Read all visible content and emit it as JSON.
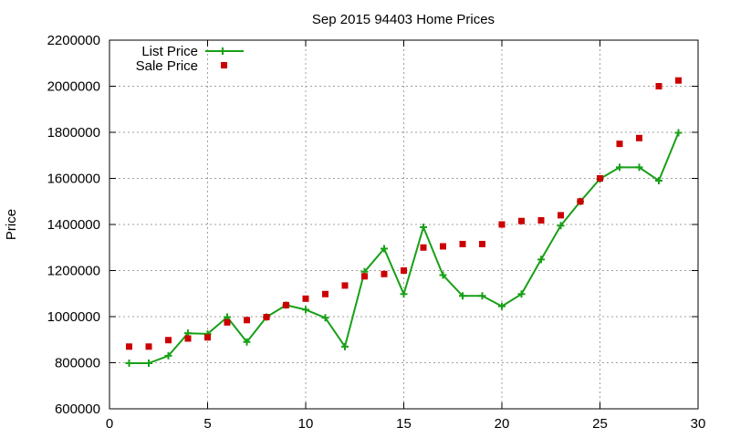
{
  "chart_data": {
    "type": "line",
    "title": "Sep 2015 94403 Home Prices",
    "xlabel": "",
    "ylabel": "Price",
    "xlim": [
      0,
      30
    ],
    "ylim": [
      600000,
      2200000
    ],
    "x_ticks": [
      "0",
      "5",
      "10",
      "15",
      "20",
      "25",
      "30"
    ],
    "y_ticks": [
      "600000",
      "800000",
      "1000000",
      "1200000",
      "1400000",
      "1600000",
      "1800000",
      "2000000",
      "2200000"
    ],
    "grid": true,
    "legend_position": "top-left",
    "series": [
      {
        "name": "List Price",
        "style": "line-with-plus-markers",
        "color": "#18a018",
        "x": [
          1,
          2,
          3,
          4,
          5,
          6,
          7,
          8,
          9,
          10,
          11,
          12,
          13,
          14,
          15,
          16,
          17,
          18,
          19,
          20,
          21,
          22,
          23,
          24,
          25,
          26,
          27,
          28,
          29
        ],
        "values": [
          798000,
          798000,
          830000,
          928000,
          925000,
          998000,
          890000,
          998000,
          1050000,
          1030000,
          995000,
          870000,
          1195000,
          1295000,
          1098000,
          1388000,
          1180000,
          1090000,
          1090000,
          1045000,
          1098000,
          1248000,
          1395000,
          1500000,
          1598000,
          1648000,
          1648000,
          1590000,
          1798000
        ]
      },
      {
        "name": "Sale Price",
        "style": "square-markers",
        "color": "#cc0000",
        "x": [
          1,
          2,
          3,
          4,
          5,
          6,
          7,
          8,
          9,
          10,
          11,
          12,
          13,
          14,
          15,
          16,
          17,
          18,
          19,
          20,
          21,
          22,
          23,
          24,
          25,
          26,
          27,
          28,
          29
        ],
        "values": [
          870000,
          870000,
          898000,
          905000,
          910000,
          975000,
          985000,
          998000,
          1050000,
          1078000,
          1098000,
          1135000,
          1175000,
          1185000,
          1200000,
          1300000,
          1305000,
          1315000,
          1315000,
          1400000,
          1415000,
          1418000,
          1440000,
          1500000,
          1600000,
          1750000,
          1775000,
          2000000,
          2025000
        ]
      }
    ]
  }
}
